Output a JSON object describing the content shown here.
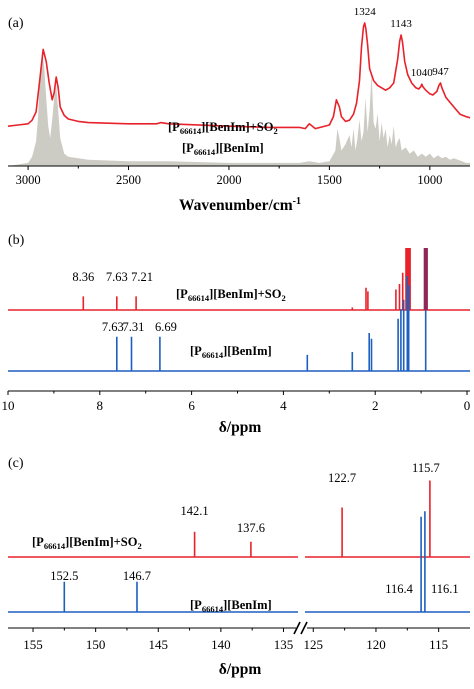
{
  "colors": {
    "red": "#e8222a",
    "blue": "#1d5fbf",
    "gray_fill": "#cdccc4",
    "axis": "#000000"
  },
  "chart_data": [
    {
      "panel": "(a)",
      "type": "line",
      "xlabel": "Wavenumber/cm",
      "xlabel_sup": "-1",
      "xlim": [
        3100,
        800
      ],
      "xticks": [
        3000,
        2500,
        2000,
        1500,
        1000
      ],
      "xtick_labels": [
        "3000",
        "2500",
        "2000",
        "1500",
        "1000"
      ],
      "peak_labels": [
        "1324",
        "1143",
        "1040",
        "947"
      ],
      "series": [
        {
          "name": "[P66614][BenIm]+SO2",
          "label_parts": [
            "[P",
            "66614",
            "][BenIm]+SO",
            "2"
          ],
          "color": "#e8222a",
          "x": [
            3100,
            3050,
            3000,
            2980,
            2960,
            2940,
            2925,
            2910,
            2895,
            2880,
            2870,
            2860,
            2850,
            2840,
            2820,
            2800,
            2750,
            2700,
            2500,
            2360,
            2340,
            2300,
            2000,
            1800,
            1700,
            1650,
            1620,
            1600,
            1570,
            1500,
            1480,
            1465,
            1450,
            1440,
            1420,
            1400,
            1380,
            1365,
            1350,
            1340,
            1330,
            1324,
            1318,
            1310,
            1300,
            1280,
            1260,
            1240,
            1220,
            1200,
            1180,
            1160,
            1150,
            1143,
            1136,
            1125,
            1110,
            1090,
            1070,
            1055,
            1045,
            1040,
            1035,
            1020,
            1000,
            985,
            965,
            955,
            947,
            940,
            920,
            900,
            870,
            850,
            820,
            800
          ],
          "y": [
            14,
            15,
            16,
            19,
            26,
            55,
            78,
            68,
            50,
            36,
            42,
            55,
            46,
            30,
            23,
            20,
            18,
            17,
            16,
            16,
            17,
            16,
            14,
            13,
            13,
            13,
            12,
            16,
            12,
            15,
            22,
            36,
            30,
            22,
            18,
            19,
            24,
            33,
            52,
            80,
            97,
            100,
            95,
            82,
            62,
            52,
            48,
            46,
            44,
            46,
            50,
            70,
            85,
            90,
            84,
            68,
            57,
            50,
            46,
            45,
            47,
            49,
            47,
            44,
            41,
            40,
            43,
            48,
            50,
            46,
            38,
            34,
            28,
            24,
            22,
            21
          ]
        },
        {
          "name": "[P66614][BenIm]",
          "label_parts": [
            "[P",
            "66614",
            "][BenIm]"
          ],
          "color": "#cdccc4",
          "x": [
            3100,
            3000,
            2980,
            2960,
            2950,
            2940,
            2930,
            2920,
            2910,
            2900,
            2890,
            2880,
            2870,
            2860,
            2850,
            2840,
            2820,
            2800,
            2700,
            2500,
            2300,
            2000,
            1800,
            1650,
            1600,
            1550,
            1500,
            1470,
            1460,
            1450,
            1440,
            1420,
            1400,
            1390,
            1380,
            1370,
            1360,
            1350,
            1340,
            1330,
            1320,
            1310,
            1300,
            1290,
            1280,
            1270,
            1260,
            1250,
            1240,
            1230,
            1220,
            1210,
            1200,
            1190,
            1180,
            1170,
            1160,
            1150,
            1140,
            1120,
            1100,
            1080,
            1060,
            1040,
            1020,
            1000,
            980,
            960,
            940,
            920,
            900,
            880,
            860,
            840,
            820,
            800
          ],
          "y": [
            0,
            2,
            6,
            16,
            32,
            62,
            74,
            64,
            44,
            26,
            18,
            30,
            44,
            52,
            36,
            18,
            8,
            6,
            4,
            3,
            3,
            2,
            2,
            2,
            3,
            2,
            3,
            10,
            24,
            18,
            10,
            14,
            20,
            12,
            24,
            10,
            18,
            30,
            16,
            22,
            44,
            22,
            36,
            60,
            28,
            24,
            34,
            16,
            28,
            18,
            24,
            12,
            20,
            14,
            26,
            12,
            16,
            18,
            10,
            12,
            8,
            10,
            6,
            8,
            6,
            8,
            5,
            7,
            5,
            6,
            4,
            5,
            4,
            3,
            2,
            2
          ]
        }
      ]
    },
    {
      "panel": "(b)",
      "type": "line",
      "xlabel": "δ/ppm",
      "xlim": [
        10,
        0
      ],
      "xticks": [
        10,
        8,
        6,
        4,
        2,
        0
      ],
      "xtick_labels": [
        "10",
        "8",
        "6",
        "4",
        "2",
        "0"
      ],
      "series": [
        {
          "name": "[P66614][BenIm]+SO2",
          "label_parts": [
            "[P",
            "66614",
            "][BenIm]+SO",
            "2"
          ],
          "color": "#e8222a",
          "peak_labels": [
            "8.36",
            "7.63",
            "7.21"
          ],
          "peaks": [
            {
              "x": 8.36,
              "h": 0.22
            },
            {
              "x": 7.63,
              "h": 0.22
            },
            {
              "x": 7.21,
              "h": 0.22
            },
            {
              "x": 2.5,
              "h": 0.04
            },
            {
              "x": 2.2,
              "h": 0.36
            },
            {
              "x": 2.16,
              "h": 0.3
            },
            {
              "x": 1.55,
              "h": 0.33
            },
            {
              "x": 1.47,
              "h": 0.42
            },
            {
              "x": 1.4,
              "h": 0.6
            },
            {
              "x": 1.33,
              "h": 1.0
            },
            {
              "x": 1.3,
              "h": 1.0
            },
            {
              "x": 1.27,
              "h": 1.0
            },
            {
              "x": 1.24,
              "h": 1.0
            },
            {
              "x": 0.9,
              "h": 1.0
            },
            {
              "x": 0.87,
              "h": 1.0
            }
          ]
        },
        {
          "name": "[P66614][BenIm]",
          "label_parts": [
            "[P",
            "66614",
            "][BenIm]"
          ],
          "color": "#1d5fbf",
          "peak_labels": [
            "7.63",
            "7.31",
            "6.69"
          ],
          "peaks": [
            {
              "x": 7.63,
              "h": 0.36
            },
            {
              "x": 7.31,
              "h": 0.36
            },
            {
              "x": 6.69,
              "h": 0.36
            },
            {
              "x": 3.48,
              "h": 0.17
            },
            {
              "x": 2.5,
              "h": 0.2
            },
            {
              "x": 2.13,
              "h": 0.4
            },
            {
              "x": 2.08,
              "h": 0.34
            },
            {
              "x": 1.5,
              "h": 0.55
            },
            {
              "x": 1.44,
              "h": 0.65
            },
            {
              "x": 1.38,
              "h": 0.75
            },
            {
              "x": 1.3,
              "h": 1.0
            },
            {
              "x": 1.27,
              "h": 0.9
            },
            {
              "x": 0.9,
              "h": 0.85
            }
          ]
        }
      ]
    },
    {
      "panel": "(c)",
      "type": "line",
      "xlabel": "δ/ppm",
      "axis_break": [
        134,
        125
      ],
      "xticks": [
        155,
        150,
        145,
        140,
        135,
        125,
        120,
        115
      ],
      "xtick_labels": [
        "155",
        "150",
        "145",
        "140",
        "135",
        "125",
        "120",
        "115"
      ],
      "series": [
        {
          "name": "[P66614][BenIm]+SO2",
          "label_parts": [
            "[P",
            "66614",
            "][BenIm]+SO",
            "2"
          ],
          "color": "#e8222a",
          "peak_labels": [
            "142.1",
            "137.6",
            "122.7",
            "115.7"
          ],
          "peaks": [
            {
              "x": 142.1,
              "h": 0.28
            },
            {
              "x": 137.6,
              "h": 0.17
            },
            {
              "x": 122.7,
              "h": 0.55
            },
            {
              "x": 115.7,
              "h": 0.85
            }
          ]
        },
        {
          "name": "[P66614][BenIm]",
          "label_parts": [
            "[P",
            "66614",
            "][BenIm]"
          ],
          "color": "#1d5fbf",
          "peak_labels": [
            "152.5",
            "146.7",
            "116.4",
            "116.1"
          ],
          "peaks": [
            {
              "x": 152.5,
              "h": 0.27
            },
            {
              "x": 146.7,
              "h": 0.27
            },
            {
              "x": 116.4,
              "h": 0.85
            },
            {
              "x": 116.1,
              "h": 0.9
            }
          ]
        }
      ]
    }
  ]
}
